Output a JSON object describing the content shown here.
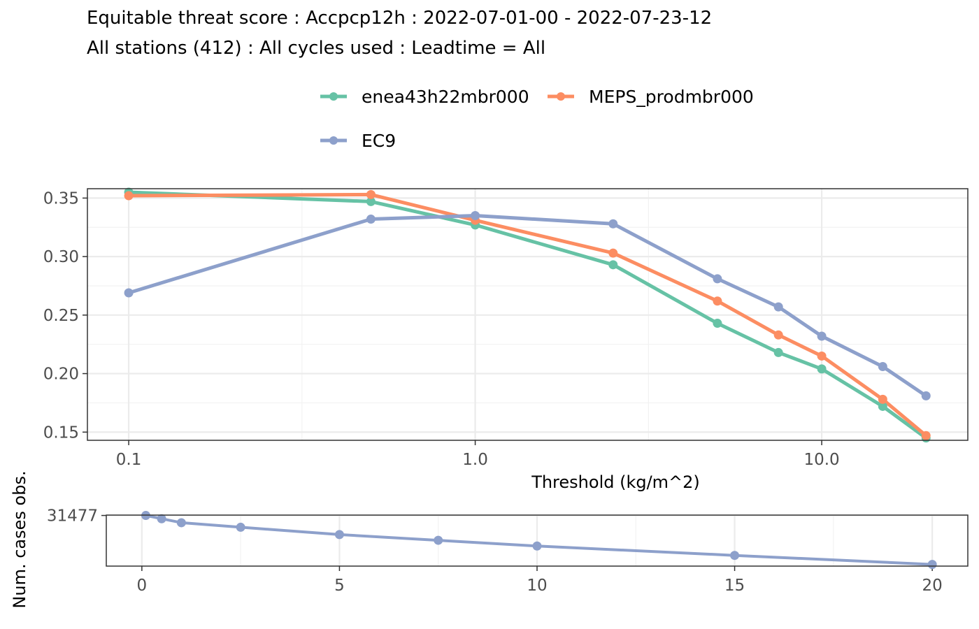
{
  "title": "Equitable threat score : Accpcp12h : 2022-07-01-00 - 2022-07-23-12",
  "subtitle": "All stations (412) : All cycles used : Leadtime = All",
  "chart_data": [
    {
      "type": "line",
      "x_scale": "log10",
      "x": [
        0.1,
        0.5,
        1,
        2.5,
        5,
        7.5,
        10,
        15,
        20
      ],
      "xlabel": "Threshold (kg/m^2)",
      "ylabel": "",
      "x_ticks": [
        "0.1",
        "1.0",
        "10.0"
      ],
      "y_ticks": [
        "0.15",
        "0.20",
        "0.25",
        "0.30",
        "0.35"
      ],
      "ylim": [
        0.143,
        0.358
      ],
      "xlim": [
        0.076,
        26.4
      ],
      "grid": true,
      "legend": "top",
      "series": [
        {
          "name": "enea43h22mbr000",
          "color": "#66c2a5",
          "values": [
            0.355,
            0.347,
            0.327,
            0.293,
            0.243,
            0.218,
            0.204,
            0.172,
            0.145
          ]
        },
        {
          "name": "MEPS_prodmbr000",
          "color": "#fc8d62",
          "values": [
            0.352,
            0.353,
            0.331,
            0.303,
            0.262,
            0.233,
            0.215,
            0.178,
            0.147
          ]
        },
        {
          "name": "EC9",
          "color": "#8da0cb",
          "values": [
            0.269,
            0.332,
            0.335,
            0.328,
            0.281,
            0.257,
            0.232,
            0.206,
            0.181
          ]
        }
      ]
    },
    {
      "type": "line",
      "x": [
        0.1,
        0.5,
        1,
        2.5,
        5,
        7.5,
        10,
        15,
        20
      ],
      "ylabel": "Num. cases obs.",
      "x_ticks": [
        "0",
        "5",
        "10",
        "15",
        "20"
      ],
      "y_ticks": [
        "31477"
      ],
      "xlim": [
        -0.9,
        20.9
      ],
      "ylim": [
        2350,
        31700
      ],
      "grid": true,
      "series": [
        {
          "name": "",
          "color": "#8da0cb",
          "values": [
            31477,
            29600,
            27300,
            24700,
            20500,
            17200,
            13900,
            8500,
            3300
          ]
        }
      ]
    }
  ]
}
